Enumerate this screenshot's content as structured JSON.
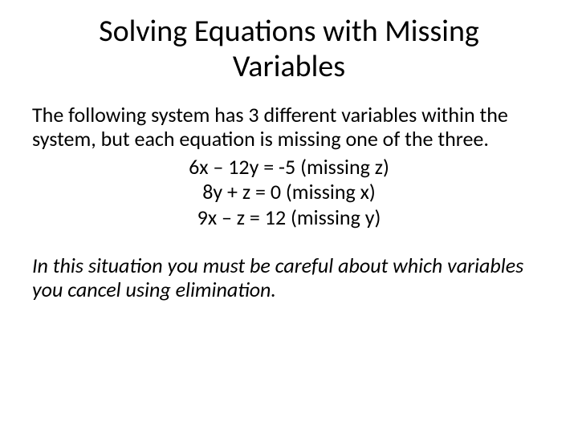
{
  "title": "Solving Equations with Missing Variables",
  "intro": "The following system has 3 different variables within the system, but each equation is missing one of the three.",
  "equations": [
    "6x – 12y = -5 (missing z)",
    "8y + z = 0 (missing x)",
    "9x – z = 12 (missing y)"
  ],
  "conclusion": "In this situation you must be careful about which variables you cancel using elimination.",
  "colors": {
    "background": "#ffffff",
    "text": "#000000"
  },
  "typography": {
    "title_fontsize": 38,
    "body_fontsize": 26,
    "font_family": "Calibri"
  }
}
